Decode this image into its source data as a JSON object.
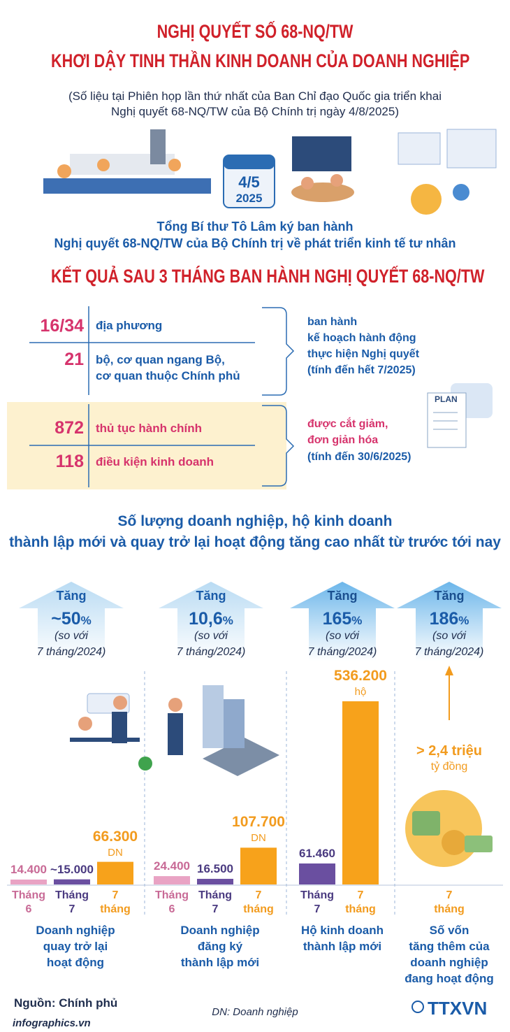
{
  "header": {
    "title_line1": "NGHỊ QUYẾT SỐ 68-NQ/TW",
    "title_line2": "KHƠI DẬY TINH THẦN KINH DOANH CỦA DOANH NGHIỆP",
    "subtitle_line1": "(Số liệu tại Phiên họp lần thứ nhất của Ban Chỉ đạo Quốc gia triển khai",
    "subtitle_line2": "Nghị quyết 68-NQ/TW của Bộ Chính trị ngày 4/8/2025)"
  },
  "calendar": {
    "date": "4/5",
    "year": "2025"
  },
  "intro": {
    "line1": "Tổng Bí thư Tô Lâm ký ban hành",
    "line2": "Nghị quyết 68-NQ/TW của Bộ Chính trị về phát triển kinh tế tư nhân"
  },
  "results_title": "KẾT QUẢ SAU 3 THÁNG BAN HÀNH NGHỊ QUYẾT 68-NQ/TW",
  "results": [
    {
      "items": [
        {
          "number": "16/34",
          "label": [
            "địa phương"
          ]
        },
        {
          "number": 21,
          "label": [
            "bộ, cơ quan ngang Bộ,",
            "cơ quan thuộc Chính phủ"
          ]
        }
      ],
      "note": [
        "ban hành",
        "kế hoạch hành động",
        "thực hiện Nghị quyết",
        "(tính đến hết 7/2025)"
      ]
    },
    {
      "items": [
        {
          "number": 872,
          "label": [
            "thủ tục hành chính"
          ]
        },
        {
          "number": 118,
          "label": [
            "điều kiện kinh doanh"
          ]
        }
      ],
      "note": [
        "được cắt giảm,",
        "đơn giản hóa",
        "(tính đến 30/6/2025)"
      ]
    }
  ],
  "plan_label": "PLAN",
  "section2_title": [
    "Số lượng doanh nghiệp, hộ kinh doanh",
    "thành lập mới và quay trở lại hoạt động tăng cao nhất từ trước tới nay"
  ],
  "arrows": [
    {
      "label": "Tăng",
      "value": "~50",
      "unit": "%",
      "note": [
        "(so với",
        "7 tháng/2024)"
      ]
    },
    {
      "label": "Tăng",
      "value": "10,6",
      "unit": "%",
      "note": [
        "(so với",
        "7 tháng/2024)"
      ]
    },
    {
      "label": "Tăng",
      "value": "165",
      "unit": "%",
      "note": [
        "(so với",
        "7 tháng/2024)"
      ]
    },
    {
      "label": "Tăng",
      "value": "186",
      "unit": "%",
      "note": [
        "(so với",
        "7 tháng/2024)"
      ]
    }
  ],
  "groups": [
    {
      "bars": [
        {
          "value": 14400,
          "label": "14.400",
          "month": [
            "Tháng",
            "6"
          ],
          "color": "#e9a3c4"
        },
        {
          "value": 15000,
          "label": "~15.000",
          "month": [
            "Tháng",
            "7"
          ],
          "color": "#6a4fa0"
        },
        {
          "value": 66300,
          "label": "66.300",
          "unit": "DN",
          "month": [
            "7",
            "tháng"
          ],
          "color": "#f7a21b"
        }
      ],
      "caption": [
        "Doanh nghiệp",
        "quay trở lại",
        "hoạt động"
      ]
    },
    {
      "bars": [
        {
          "value": 24400,
          "label": "24.400",
          "month": [
            "Tháng",
            "6"
          ],
          "color": "#e9a3c4"
        },
        {
          "value": 16500,
          "label": "16.500",
          "month": [
            "Tháng",
            "7"
          ],
          "color": "#6a4fa0"
        },
        {
          "value": 107700,
          "label": "107.700",
          "unit": "DN",
          "month": [
            "7",
            "tháng"
          ],
          "color": "#f7a21b"
        }
      ],
      "caption": [
        "Doanh nghiệp",
        "đăng ký",
        "thành lập mới"
      ]
    },
    {
      "bars": [
        {
          "value": 61460,
          "label": "61.460",
          "month": [
            "Tháng",
            "7"
          ],
          "color": "#6a4fa0"
        },
        {
          "value": 536200,
          "label": "536.200",
          "unit": "hộ",
          "month": [
            "7",
            "tháng"
          ],
          "color": "#f7a21b"
        }
      ],
      "caption": [
        "Hộ kinh doanh",
        "thành lập mới"
      ]
    }
  ],
  "capital": {
    "value": "> 2,4 triệu",
    "unit": "tỷ đồng",
    "month": [
      "7",
      "tháng"
    ],
    "caption": [
      "Số vốn",
      "tăng thêm của",
      "doanh nghiệp",
      "đang hoạt động"
    ]
  },
  "footer": {
    "source": "Nguồn: Chính phủ",
    "abbreviation": "DN: Doanh nghiệp",
    "site": "infographics.vn",
    "logo": "TTXVN"
  }
}
